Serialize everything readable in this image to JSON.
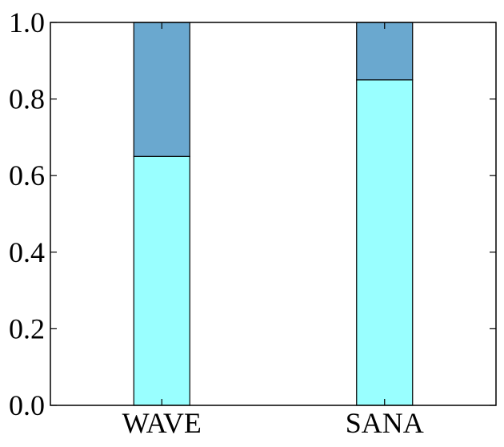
{
  "chart_data": {
    "type": "bar",
    "stacked": true,
    "title": "",
    "xlabel": "",
    "ylabel": "",
    "categories": [
      "WAVE",
      "SANA"
    ],
    "series": [
      {
        "values": [
          0.65,
          0.85
        ],
        "color": "#99ffff"
      },
      {
        "values": [
          0.35,
          0.15
        ],
        "color": "#6aa8cf"
      }
    ],
    "ylim": [
      0.0,
      1.0
    ],
    "yticks": [
      "0.0",
      "0.2",
      "0.4",
      "0.6",
      "0.8",
      "1.0"
    ],
    "grid": false,
    "legend": "none"
  }
}
